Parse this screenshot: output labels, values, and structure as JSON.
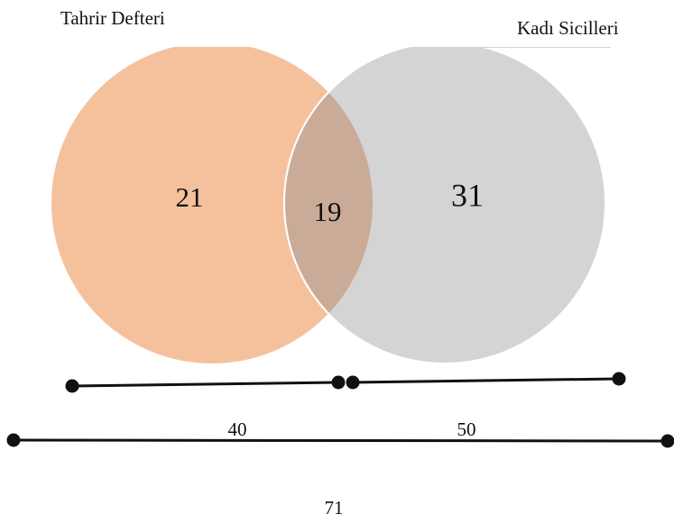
{
  "sets": [
    {
      "label": "Tahrir Defteri",
      "only": "21"
    },
    {
      "label": "Kadı Sicilleri",
      "only": "31"
    }
  ],
  "intersection": "19",
  "spans": [
    "40",
    "50",
    "71"
  ]
}
